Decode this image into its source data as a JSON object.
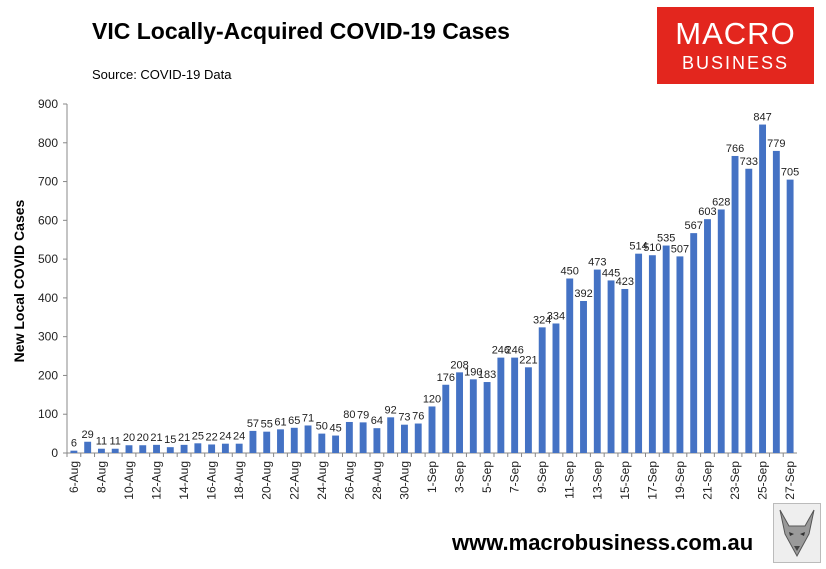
{
  "header": {
    "title": "VIC Locally-Acquired COVID-19 Cases",
    "source": "Source: COVID-19 Data"
  },
  "logo": {
    "line1": "MACRO",
    "line2": "BUSINESS"
  },
  "footer": {
    "website": "www.macrobusiness.com.au"
  },
  "colors": {
    "bar": "#4472c4",
    "logo_bg": "#e3261e"
  },
  "chart_data": {
    "type": "bar",
    "title": "VIC Locally-Acquired COVID-19 Cases",
    "xlabel": "",
    "ylabel": "New Local COVID Cases",
    "ylim": [
      0,
      900
    ],
    "yticks": [
      0,
      100,
      200,
      300,
      400,
      500,
      600,
      700,
      800,
      900
    ],
    "grid": false,
    "categories": [
      "6-Aug",
      "7-Aug",
      "8-Aug",
      "9-Aug",
      "10-Aug",
      "11-Aug",
      "12-Aug",
      "13-Aug",
      "14-Aug",
      "15-Aug",
      "16-Aug",
      "17-Aug",
      "18-Aug",
      "19-Aug",
      "20-Aug",
      "21-Aug",
      "22-Aug",
      "23-Aug",
      "24-Aug",
      "25-Aug",
      "26-Aug",
      "27-Aug",
      "28-Aug",
      "29-Aug",
      "30-Aug",
      "31-Aug",
      "1-Sep",
      "2-Sep",
      "3-Sep",
      "4-Sep",
      "5-Sep",
      "6-Sep",
      "7-Sep",
      "8-Sep",
      "9-Sep",
      "10-Sep",
      "11-Sep",
      "12-Sep",
      "13-Sep",
      "14-Sep",
      "15-Sep",
      "16-Sep",
      "17-Sep",
      "18-Sep",
      "19-Sep",
      "20-Sep",
      "21-Sep",
      "22-Sep",
      "23-Sep",
      "24-Sep",
      "25-Sep",
      "26-Sep",
      "27-Sep"
    ],
    "x_tick_labels": [
      "6-Aug",
      "8-Aug",
      "10-Aug",
      "12-Aug",
      "14-Aug",
      "16-Aug",
      "18-Aug",
      "20-Aug",
      "22-Aug",
      "24-Aug",
      "26-Aug",
      "28-Aug",
      "30-Aug",
      "1-Sep",
      "3-Sep",
      "5-Sep",
      "7-Sep",
      "9-Sep",
      "11-Sep",
      "13-Sep",
      "15-Sep",
      "17-Sep",
      "19-Sep",
      "21-Sep",
      "23-Sep",
      "25-Sep",
      "27-Sep"
    ],
    "values": [
      6,
      29,
      11,
      11,
      20,
      20,
      21,
      15,
      21,
      25,
      22,
      24,
      24,
      57,
      55,
      61,
      65,
      71,
      50,
      45,
      80,
      79,
      64,
      92,
      73,
      76,
      120,
      176,
      208,
      190,
      183,
      246,
      246,
      221,
      324,
      334,
      450,
      392,
      473,
      445,
      423,
      514,
      510,
      535,
      507,
      567,
      603,
      628,
      766,
      733,
      847,
      779,
      705
    ]
  }
}
